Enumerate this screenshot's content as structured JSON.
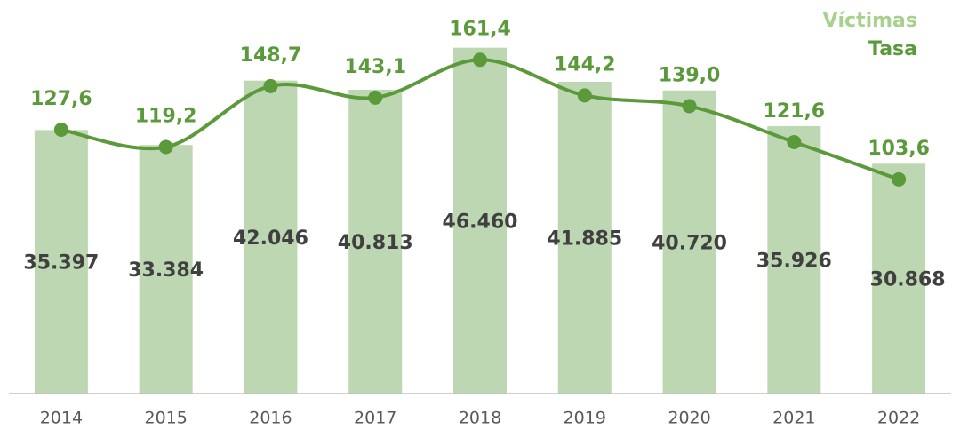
{
  "chart_data": {
    "type": "combo",
    "categories": [
      "2014",
      "2015",
      "2016",
      "2017",
      "2018",
      "2019",
      "2020",
      "2021",
      "2022"
    ],
    "series": [
      {
        "name": "Víctimas",
        "type": "bar",
        "color": "#bdd7b3",
        "values": [
          35397,
          33384,
          42046,
          40813,
          46460,
          41885,
          40720,
          35926,
          30868
        ],
        "value_labels": [
          "35.397",
          "33.384",
          "42.046",
          "40.813",
          "46.460",
          "41.885",
          "40.720",
          "35.926",
          "30.868"
        ]
      },
      {
        "name": "Tasa",
        "type": "line",
        "axis": "y2",
        "color": "#5b9a3b",
        "values": [
          127.6,
          119.2,
          148.7,
          143.1,
          161.4,
          144.2,
          139.0,
          121.6,
          103.6
        ],
        "value_labels": [
          "127,6",
          "119,2",
          "148,7",
          "143,1",
          "161,4",
          "144,2",
          "139,0",
          "121,6",
          "103,6"
        ]
      }
    ],
    "legend_colors": [
      "#a9d18e",
      "#5b9a3b"
    ],
    "ylim": [
      0,
      50000
    ],
    "y2lim": [
      0,
      180
    ],
    "legend": "top-right"
  }
}
